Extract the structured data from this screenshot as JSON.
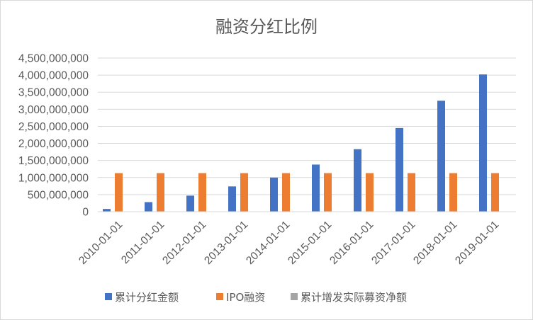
{
  "chart_data": {
    "type": "bar",
    "title": "融资分红比例",
    "xlabel": "",
    "ylabel": "",
    "categories": [
      "2010-01-01",
      "2011-01-01",
      "2012-01-01",
      "2013-01-01",
      "2014-01-01",
      "2015-01-01",
      "2016-01-01",
      "2017-01-01",
      "2018-01-01",
      "2019-01-01"
    ],
    "series": [
      {
        "name": "累计分红金额",
        "color": "#4472c4",
        "values": [
          80000000,
          280000000,
          470000000,
          740000000,
          1000000000,
          1380000000,
          1830000000,
          2450000000,
          3250000000,
          4020000000
        ]
      },
      {
        "name": "IPO融资",
        "color": "#ed7d31",
        "values": [
          1130000000,
          1130000000,
          1130000000,
          1130000000,
          1130000000,
          1130000000,
          1130000000,
          1130000000,
          1130000000,
          1130000000
        ]
      },
      {
        "name": "累计增发实际募资净额",
        "color": "#a5a5a5",
        "values": [
          0,
          0,
          0,
          0,
          0,
          0,
          0,
          0,
          0,
          0
        ]
      }
    ],
    "ylim": [
      0,
      4500000000
    ],
    "yticks": [
      "0",
      "500,000,000",
      "1,000,000,000",
      "1,500,000,000",
      "2,000,000,000",
      "2,500,000,000",
      "3,000,000,000",
      "3,500,000,000",
      "4,000,000,000",
      "4,500,000,000"
    ],
    "grid": true,
    "legend_position": "bottom"
  }
}
